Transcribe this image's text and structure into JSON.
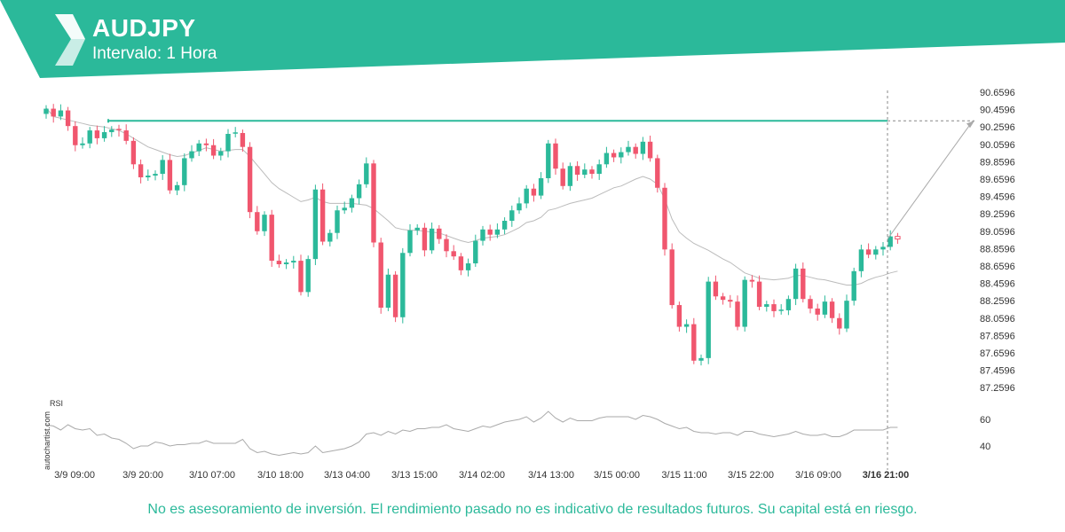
{
  "header": {
    "title": "AUDJPY",
    "subtitle": "Intervalo: 1 Hora",
    "logo_icon": "autochartist-logo-icon",
    "brand_color": "#2bb99a"
  },
  "disclaimer": "No es asesoramiento de inversión. El rendimiento pasado no es indicativo de resultados futuros. Su capital está en riesgo.",
  "watermark": "autochartist.com",
  "colors": {
    "bull": "#2bb99a",
    "bear": "#f0566e",
    "resistance": "#2bb99a",
    "ma": "#bbbbbb",
    "rsi": "#aaaaaa"
  },
  "chart_data": [
    {
      "type": "candlestick",
      "symbol": "AUDJPY",
      "interval": "1 Hora",
      "ylim": [
        87.1,
        90.7
      ],
      "y_ticks": [
        "90.6596",
        "90.4596",
        "90.2596",
        "90.0596",
        "89.8596",
        "89.6596",
        "89.4596",
        "89.2596",
        "89.0596",
        "88.8596",
        "88.6596",
        "88.4596",
        "88.2596",
        "88.0596",
        "87.8596",
        "87.6596",
        "87.4596",
        "87.2596"
      ],
      "x_ticks": [
        "3/9 09:00",
        "3/9 20:00",
        "3/10 07:00",
        "3/10 18:00",
        "3/13 04:00",
        "3/13 15:00",
        "3/14 02:00",
        "3/14 13:00",
        "3/15 00:00",
        "3/15 11:00",
        "3/15 22:00",
        "3/16 09:00",
        "3/16 21:00"
      ],
      "highlighted_x_tick": "3/16 21:00",
      "resistance_level": 90.33,
      "close": [
        90.47,
        90.38,
        90.45,
        90.27,
        90.05,
        90.07,
        90.22,
        90.13,
        90.2,
        90.23,
        90.22,
        90.1,
        89.83,
        89.68,
        89.7,
        89.72,
        89.88,
        89.53,
        89.59,
        89.9,
        89.98,
        90.07,
        90.05,
        89.93,
        89.98,
        90.18,
        90.19,
        90.03,
        89.28,
        89.06,
        89.25,
        88.72,
        88.68,
        88.7,
        88.72,
        88.36,
        88.74,
        89.54,
        88.94,
        89.04,
        89.3,
        89.33,
        89.44,
        89.6,
        89.84,
        88.93,
        88.18,
        88.56,
        88.07,
        88.81,
        89.07,
        89.1,
        88.84,
        89.09,
        88.97,
        88.83,
        88.77,
        88.61,
        88.69,
        88.95,
        89.08,
        89.02,
        89.08,
        89.18,
        89.3,
        89.38,
        89.55,
        89.47,
        89.67,
        90.07,
        89.78,
        89.58,
        89.81,
        89.71,
        89.77,
        89.72,
        89.83,
        89.96,
        89.91,
        89.97,
        90.03,
        89.95,
        90.09,
        89.9,
        89.56,
        88.85,
        88.21,
        87.96,
        87.99,
        87.57,
        87.6,
        88.48,
        88.31,
        88.27,
        88.25,
        87.96,
        88.5,
        88.48,
        88.19,
        88.22,
        88.14,
        88.15,
        88.28,
        88.63,
        88.28,
        88.17,
        88.1,
        88.25,
        88.06,
        87.94,
        88.26,
        88.6,
        88.85,
        88.79,
        88.85,
        88.88,
        89.0,
        88.97
      ],
      "ma": [
        90.48,
        90.38,
        90.36,
        90.34,
        90.32,
        90.3,
        90.28,
        90.27,
        90.26,
        90.24,
        90.22,
        90.18,
        90.13,
        90.08,
        90.03,
        90.0,
        89.97,
        89.94,
        89.92,
        89.93,
        89.96,
        89.99,
        90.02,
        90.0,
        89.98,
        89.99,
        90.0,
        90.0,
        89.92,
        89.82,
        89.72,
        89.62,
        89.55,
        89.5,
        89.45,
        89.4,
        89.42,
        89.45,
        89.4,
        89.38,
        89.38,
        89.38,
        89.38,
        89.37,
        89.36,
        89.32,
        89.25,
        89.18,
        89.1,
        89.08,
        89.07,
        89.07,
        89.06,
        89.05,
        89.04,
        89.01,
        88.98,
        88.95,
        88.93,
        88.95,
        88.98,
        88.99,
        89.0,
        89.02,
        89.06,
        89.1,
        89.16,
        89.18,
        89.22,
        89.3,
        89.32,
        89.35,
        89.38,
        89.4,
        89.42,
        89.44,
        89.48,
        89.52,
        89.56,
        89.58,
        89.62,
        89.66,
        89.69,
        89.66,
        89.6,
        89.43,
        89.2,
        89.05,
        88.98,
        88.92,
        88.88,
        88.84,
        88.79,
        88.74,
        88.7,
        88.64,
        88.58,
        88.55,
        88.52,
        88.51,
        88.5,
        88.51,
        88.52,
        88.55,
        88.55,
        88.53,
        88.51,
        88.5,
        88.48,
        88.46,
        88.44,
        88.44,
        88.46,
        88.5,
        88.53,
        88.55,
        88.58,
        88.6
      ],
      "rsi": [
        56,
        55,
        52,
        56,
        53,
        52,
        53,
        48,
        49,
        46,
        45,
        42,
        38,
        40,
        40,
        43,
        42,
        40,
        41,
        41,
        42,
        42,
        44,
        42,
        42,
        42,
        42,
        45,
        38,
        35,
        36,
        34,
        33,
        34,
        35,
        34,
        35,
        40,
        35,
        36,
        37,
        38,
        40,
        43,
        49,
        50,
        48,
        51,
        49,
        52,
        51,
        53,
        53,
        54,
        54,
        56,
        53,
        52,
        51,
        53,
        55,
        54,
        56,
        58,
        59,
        60,
        62,
        58,
        61,
        66,
        61,
        58,
        61,
        59,
        59,
        59,
        61,
        62,
        62,
        62,
        62,
        60,
        63,
        62,
        60,
        57,
        55,
        53,
        54,
        51,
        50,
        50,
        49,
        50,
        50,
        48,
        51,
        51,
        49,
        48,
        47,
        48,
        49,
        51,
        49,
        48,
        48,
        49,
        47,
        47,
        49,
        52,
        52,
        52,
        52,
        52,
        54,
        54
      ],
      "rsi_ticks": [
        "60",
        "40"
      ],
      "rsi_label": "RSI"
    }
  ]
}
